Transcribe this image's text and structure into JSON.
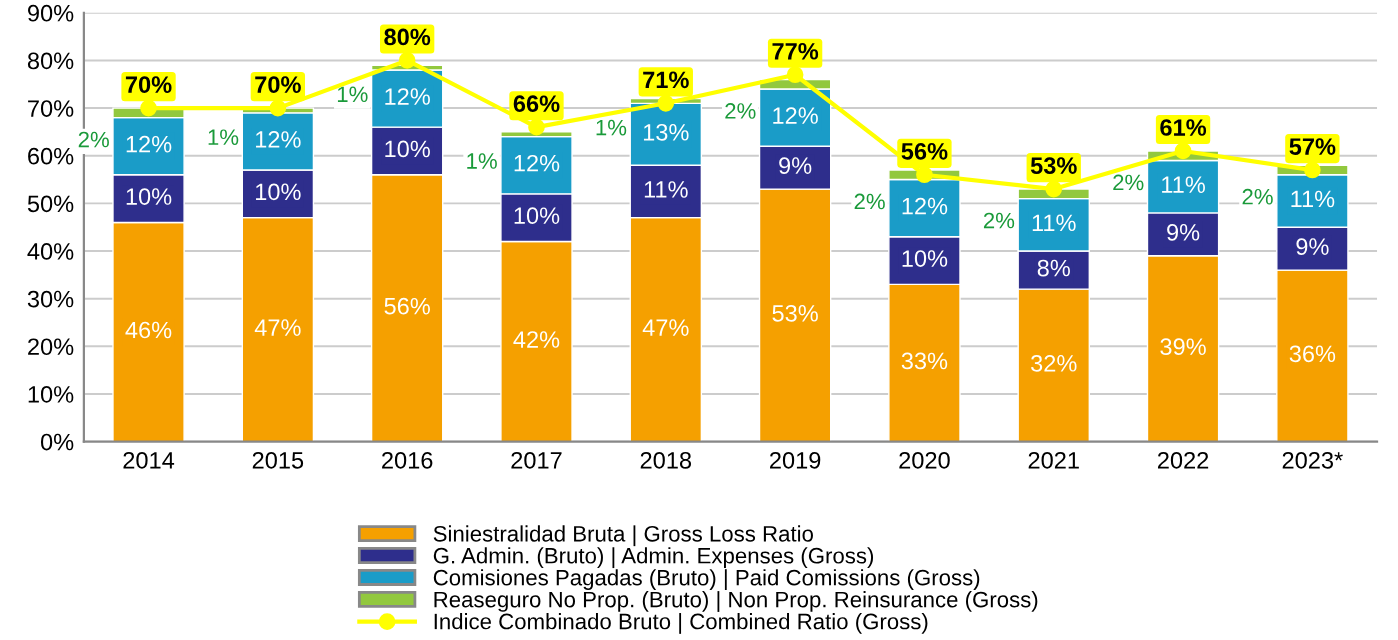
{
  "chart_data": {
    "type": "bar",
    "stacked": true,
    "categories": [
      "2014",
      "2015",
      "2016",
      "2017",
      "2018",
      "2019",
      "2020",
      "2021",
      "2022",
      "2023*"
    ],
    "ylim": [
      0,
      90
    ],
    "yticks": [
      {
        "value": 0,
        "label": "0%"
      },
      {
        "value": 10,
        "label": "10%"
      },
      {
        "value": 20,
        "label": "20%"
      },
      {
        "value": 30,
        "label": "30%"
      },
      {
        "value": 40,
        "label": "40%"
      },
      {
        "value": 50,
        "label": "50%"
      },
      {
        "value": 60,
        "label": "60%"
      },
      {
        "value": 70,
        "label": "70%"
      },
      {
        "value": 80,
        "label": "80%"
      },
      {
        "value": 90,
        "label": "90%"
      }
    ],
    "grid": "y",
    "legend": "bottom",
    "series": [
      {
        "name": "Siniestralidad Bruta | Gross Loss Ratio",
        "color": "#f5a000",
        "values": [
          46,
          47,
          56,
          42,
          47,
          53,
          33,
          32,
          39,
          36
        ],
        "value_labels": [
          "46%",
          "47%",
          "56%",
          "42%",
          "47%",
          "53%",
          "33%",
          "32%",
          "39%",
          "36%"
        ]
      },
      {
        "name": "G. Admin. (Bruto) | Admin. Expenses (Gross)",
        "color": "#2e2e8c",
        "values": [
          10,
          10,
          10,
          10,
          11,
          9,
          10,
          8,
          9,
          9
        ],
        "value_labels": [
          "10%",
          "10%",
          "10%",
          "10%",
          "11%",
          "9%",
          "10%",
          "8%",
          "9%",
          "9%"
        ]
      },
      {
        "name": "Comisiones Pagadas (Bruto) | Paid Comissions (Gross)",
        "color": "#1a9cc8",
        "values": [
          12,
          12,
          12,
          12,
          13,
          12,
          12,
          11,
          11,
          11
        ],
        "value_labels": [
          "12%",
          "12%",
          "12%",
          "12%",
          "13%",
          "12%",
          "12%",
          "11%",
          "11%",
          "11%"
        ]
      },
      {
        "name": "Reaseguro No Prop. (Bruto) | Non Prop. Reinsurance (Gross)",
        "color": "#92c83e",
        "values": [
          2,
          1,
          1,
          1,
          1,
          2,
          2,
          2,
          2,
          2
        ],
        "value_labels": [
          "2%",
          "1%",
          "1%",
          "1%",
          "1%",
          "2%",
          "2%",
          "2%",
          "2%",
          "2%"
        ]
      },
      {
        "name": "Indice Combinado Bruto | Combined Ratio (Gross)",
        "type": "line",
        "color": "#ffff00",
        "marker": "circle",
        "values": [
          70,
          70,
          80,
          66,
          71,
          77,
          56,
          53,
          61,
          57
        ],
        "value_labels": [
          "70%",
          "70%",
          "80%",
          "66%",
          "71%",
          "77%",
          "56%",
          "53%",
          "61%",
          "57%"
        ]
      }
    ]
  }
}
